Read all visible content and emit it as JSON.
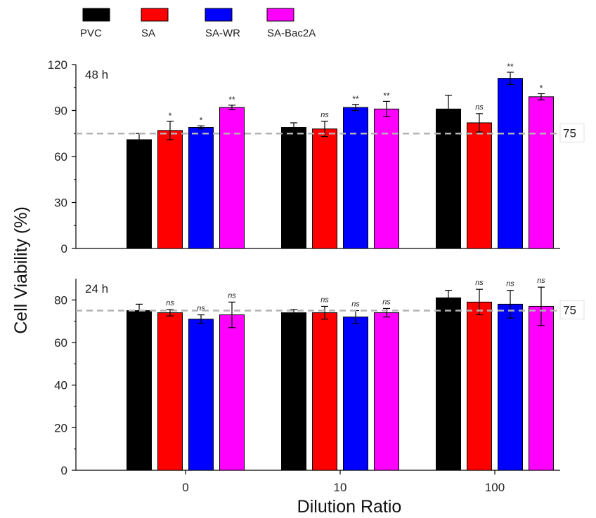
{
  "chart_data": {
    "type": "bar",
    "categories": [
      "0",
      "10",
      "100"
    ],
    "xlabel": "Dilution Ratio",
    "ylabel": "Cell Viability (%)",
    "legend": {
      "placement": "top",
      "entries": [
        {
          "name": "PVC",
          "color": "#000000"
        },
        {
          "name": "SA",
          "color": "#ff0000"
        },
        {
          "name": "SA-WR",
          "color": "#0000ff"
        },
        {
          "name": "SA-Bac2A",
          "color": "#ff00ff"
        }
      ]
    },
    "panels": [
      {
        "label": "48 h",
        "ylim": [
          0,
          120
        ],
        "yticks": [
          0,
          30,
          60,
          90,
          120
        ],
        "reference_line": {
          "value": 75,
          "label": "75"
        },
        "series": [
          {
            "name": "PVC",
            "values": [
              71,
              79,
              91
            ],
            "errors": [
              4,
              3,
              9
            ],
            "sig": [
              "",
              "",
              ""
            ]
          },
          {
            "name": "SA",
            "values": [
              77,
              78,
              82
            ],
            "errors": [
              6,
              5,
              6
            ],
            "sig": [
              "*",
              "ns",
              "ns"
            ]
          },
          {
            "name": "SA-WR",
            "values": [
              79,
              92,
              111
            ],
            "errors": [
              1,
              2,
              4
            ],
            "sig": [
              "*",
              "**",
              "**"
            ]
          },
          {
            "name": "SA-Bac2A",
            "values": [
              92,
              91,
              99
            ],
            "errors": [
              1.5,
              5,
              2
            ],
            "sig": [
              "**",
              "**",
              "*"
            ]
          }
        ]
      },
      {
        "label": "24 h",
        "ylim": [
          0,
          90
        ],
        "yticks": [
          0,
          20,
          40,
          60,
          80
        ],
        "reference_line": {
          "value": 75,
          "label": "75"
        },
        "series": [
          {
            "name": "PVC",
            "values": [
              75,
              74,
              81
            ],
            "errors": [
              3,
              1.5,
              3.5
            ],
            "sig": [
              "",
              "",
              ""
            ]
          },
          {
            "name": "SA",
            "values": [
              74,
              74,
              79
            ],
            "errors": [
              1.5,
              3,
              6
            ],
            "sig": [
              "ns",
              "ns",
              "ns"
            ]
          },
          {
            "name": "SA-WR",
            "values": [
              71,
              72,
              78
            ],
            "errors": [
              2,
              3,
              6.5
            ],
            "sig": [
              "ns",
              "ns",
              "ns"
            ]
          },
          {
            "name": "SA-Bac2A",
            "values": [
              73,
              74,
              77
            ],
            "errors": [
              6,
              2,
              9
            ],
            "sig": [
              "ns",
              "ns",
              "ns"
            ]
          }
        ]
      }
    ]
  }
}
